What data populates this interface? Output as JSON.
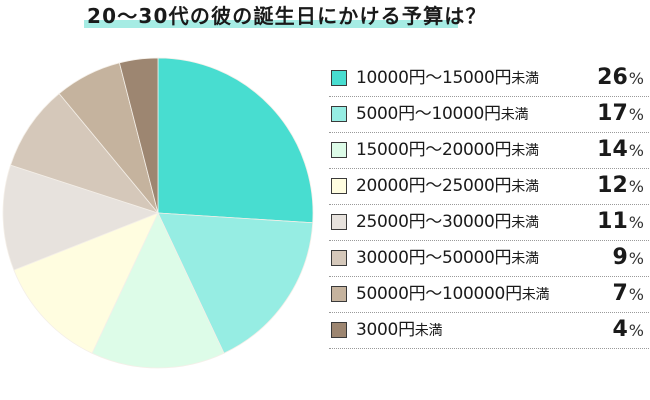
{
  "title": "20～30代の彼の誕生日にかける予算は？",
  "colors": {
    "title_highlight": "#a6ece4",
    "slice_border": "#f4efe8"
  },
  "chart_data": {
    "type": "pie",
    "title": "20～30代の彼の誕生日にかける予算は？",
    "start_angle_deg": 0,
    "direction": "clockwise",
    "legend_position": "right",
    "unit": "%",
    "categories": [
      "10000円～15000円未満",
      "5000円～10000円未満",
      "15000円～20000円未満",
      "20000円～25000円未満",
      "25000円～30000円未満",
      "30000円～50000円未満",
      "50000円～100000円未満",
      "3000円未満"
    ],
    "values": [
      26,
      17,
      14,
      12,
      11,
      9,
      7,
      4
    ],
    "colors": [
      "#48ddd0",
      "#96ede3",
      "#ddfce8",
      "#fffde0",
      "#e7e2dd",
      "#d5c8ba",
      "#c5b39e",
      "#9d8671"
    ]
  },
  "legend": {
    "items": [
      {
        "range": "10000円～15000円",
        "suffix": "未満",
        "value": "26",
        "percent_sign": "%",
        "color": "#48ddd0"
      },
      {
        "range": "5000円～10000円",
        "suffix": "未満",
        "value": "17",
        "percent_sign": "%",
        "color": "#96ede3"
      },
      {
        "range": "15000円～20000円",
        "suffix": "未満",
        "value": "14",
        "percent_sign": "%",
        "color": "#ddfce8"
      },
      {
        "range": "20000円～25000円",
        "suffix": "未満",
        "value": "12",
        "percent_sign": "%",
        "color": "#fffde0"
      },
      {
        "range": "25000円～30000円",
        "suffix": "未満",
        "value": "11",
        "percent_sign": "%",
        "color": "#e7e2dd"
      },
      {
        "range": "30000円～50000円",
        "suffix": "未満",
        "value": "9",
        "percent_sign": "%",
        "color": "#d5c8ba"
      },
      {
        "range": "50000円～100000円",
        "suffix": "未満",
        "value": "7",
        "percent_sign": "%",
        "color": "#c5b39e"
      },
      {
        "range": "3000円",
        "suffix": "未満",
        "value": "4",
        "percent_sign": "%",
        "color": "#9d8671"
      }
    ]
  }
}
